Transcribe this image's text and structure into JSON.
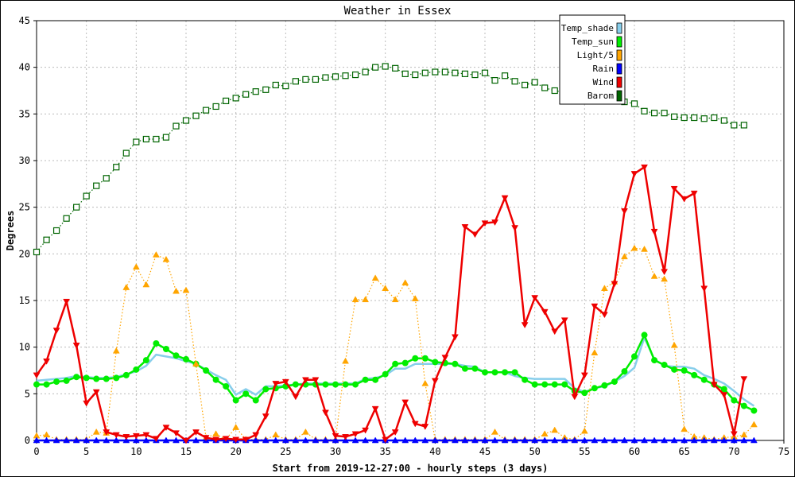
{
  "chart_data": {
    "type": "line",
    "title": "Weather in Essex",
    "xlabel": "Start from 2019-12-27:00 - hourly steps (3 days)",
    "ylabel": "Degrees",
    "xlim": [
      0,
      75
    ],
    "ylim": [
      0,
      45
    ],
    "xticks": [
      0,
      5,
      10,
      15,
      20,
      25,
      30,
      35,
      40,
      45,
      50,
      55,
      60,
      65,
      70,
      75
    ],
    "yticks": [
      0,
      5,
      10,
      15,
      20,
      25,
      30,
      35,
      40,
      45
    ],
    "grid": true,
    "legend_position": "top-right",
    "series": [
      {
        "name": "Temp_shade",
        "color": "#87ceeb",
        "marker": "none",
        "style": "solid",
        "values": [
          6.4,
          6.5,
          6.6,
          6.7,
          6.9,
          6.8,
          6.7,
          6.7,
          6.8,
          7.1,
          7.4,
          8.0,
          9.2,
          9.0,
          8.8,
          8.5,
          8.2,
          7.6,
          7.0,
          6.5,
          4.9,
          5.5,
          4.9,
          5.8,
          5.8,
          5.9,
          6.0,
          6.1,
          6.1,
          6.1,
          6.1,
          6.1,
          6.1,
          6.6,
          6.7,
          7.0,
          7.7,
          7.7,
          8.2,
          8.2,
          8.2,
          8.2,
          8.2,
          8.0,
          7.9,
          7.3,
          7.3,
          7.3,
          6.9,
          6.7,
          6.6,
          6.6,
          6.6,
          6.6,
          5.6,
          5.2,
          5.6,
          5.8,
          6.3,
          6.9,
          7.8,
          11.0,
          8.7,
          8.0,
          7.9,
          7.9,
          7.7,
          7.0,
          6.6,
          6.1,
          5.3,
          4.4,
          3.7
        ]
      },
      {
        "name": "Temp_sun",
        "color": "#00ee00",
        "marker": "circle",
        "style": "solid",
        "values": [
          6.0,
          6.0,
          6.3,
          6.4,
          6.8,
          6.7,
          6.6,
          6.6,
          6.7,
          7.0,
          7.6,
          8.6,
          10.4,
          9.8,
          9.1,
          8.7,
          8.2,
          7.5,
          6.5,
          5.8,
          4.3,
          5.0,
          4.3,
          5.5,
          5.6,
          5.8,
          6.0,
          6.0,
          6.0,
          6.0,
          6.0,
          6.0,
          6.0,
          6.5,
          6.5,
          7.1,
          8.2,
          8.3,
          8.8,
          8.8,
          8.4,
          8.3,
          8.2,
          7.7,
          7.7,
          7.3,
          7.3,
          7.3,
          7.3,
          6.5,
          6.0,
          6.0,
          6.0,
          6.0,
          5.3,
          5.1,
          5.6,
          5.9,
          6.3,
          7.4,
          9.0,
          11.3,
          8.6,
          8.1,
          7.6,
          7.5,
          7.0,
          6.5,
          6.0,
          5.5,
          4.3,
          3.7,
          3.2
        ]
      },
      {
        "name": "Light/5",
        "color": "#ffa500",
        "marker": "triangle-up",
        "style": "dotted",
        "values": [
          0.5,
          0.6,
          0.1,
          0.1,
          0.1,
          0.1,
          0.9,
          0.8,
          9.6,
          16.4,
          18.6,
          16.7,
          19.9,
          19.4,
          16.0,
          16.1,
          8.2,
          0.3,
          0.7,
          0.1,
          1.4,
          0.1,
          0.1,
          0.1,
          0.6,
          0.1,
          0.1,
          0.9,
          0.1,
          0.1,
          0.1,
          8.5,
          15.1,
          15.1,
          17.4,
          16.3,
          15.1,
          16.9,
          15.2,
          6.1,
          0.1,
          0.1,
          0.1,
          0.1,
          0.1,
          0.1,
          0.9,
          0.1,
          0.1,
          0.1,
          0.1,
          0.7,
          1.1,
          0.3,
          0.1,
          1.0,
          9.4,
          16.3,
          17.0,
          19.7,
          20.6,
          20.5,
          17.6,
          17.3,
          10.2,
          1.2,
          0.4,
          0.3,
          0.1,
          0.3,
          0.4,
          0.6,
          1.7
        ]
      },
      {
        "name": "Rain",
        "color": "#0000ff",
        "marker": "triangle-up",
        "style": "solid",
        "values": [
          0,
          0,
          0,
          0,
          0,
          0,
          0,
          0,
          0,
          0,
          0,
          0,
          0,
          0,
          0,
          0,
          0,
          0,
          0,
          0,
          0,
          0,
          0,
          0,
          0,
          0,
          0,
          0,
          0,
          0,
          0,
          0,
          0,
          0,
          0,
          0,
          0,
          0,
          0,
          0,
          0,
          0,
          0,
          0,
          0,
          0,
          0,
          0,
          0,
          0,
          0,
          0,
          0,
          0,
          0,
          0,
          0,
          0,
          0,
          0,
          0,
          0,
          0,
          0,
          0,
          0,
          0,
          0,
          0,
          0,
          0,
          0,
          0
        ]
      },
      {
        "name": "Wind",
        "color": "#ee0000",
        "marker": "triangle-down",
        "style": "solid",
        "values": [
          7.0,
          8.5,
          11.8,
          14.9,
          10.2,
          4.0,
          5.2,
          0.9,
          0.6,
          0.4,
          0.5,
          0.6,
          0.2,
          1.4,
          0.8,
          0.0,
          0.9,
          0.3,
          0.1,
          0.2,
          0.1,
          0.1,
          0.6,
          2.6,
          6.1,
          6.3,
          4.7,
          6.5,
          6.5,
          3.0,
          0.5,
          0.4,
          0.7,
          1.1,
          3.4,
          0.1,
          0.9,
          4.1,
          1.8,
          1.5,
          6.4,
          8.9,
          11.1,
          22.9,
          22.1,
          23.3,
          23.4,
          26.0,
          22.8,
          12.4,
          15.3,
          13.8,
          11.7,
          12.9,
          4.7,
          7.0,
          14.4,
          13.5,
          16.8,
          24.6,
          28.6,
          29.3,
          22.4,
          18.1,
          27.0,
          25.9,
          26.5,
          16.3,
          6.0,
          4.9,
          0.7,
          6.6
        ]
      },
      {
        "name": "Barom",
        "color": "#006400",
        "marker": "square",
        "style": "dotted",
        "values": [
          20.2,
          21.5,
          22.5,
          23.8,
          25.0,
          26.2,
          27.3,
          28.1,
          29.3,
          30.8,
          32.0,
          32.3,
          32.3,
          32.5,
          33.7,
          34.3,
          34.8,
          35.4,
          35.8,
          36.4,
          36.7,
          37.1,
          37.4,
          37.6,
          38.1,
          38.0,
          38.5,
          38.7,
          38.7,
          38.9,
          39.0,
          39.1,
          39.2,
          39.5,
          40.0,
          40.1,
          39.9,
          39.3,
          39.2,
          39.4,
          39.5,
          39.5,
          39.4,
          39.3,
          39.2,
          39.4,
          38.6,
          39.1,
          38.5,
          38.1,
          38.4,
          37.8,
          37.5,
          37.3,
          37.2,
          37.0,
          36.8,
          36.7,
          36.5,
          36.3,
          36.1,
          35.3,
          35.1,
          35.1,
          34.7,
          34.6,
          34.6,
          34.5,
          34.6,
          34.3,
          33.8,
          33.8
        ]
      }
    ]
  }
}
